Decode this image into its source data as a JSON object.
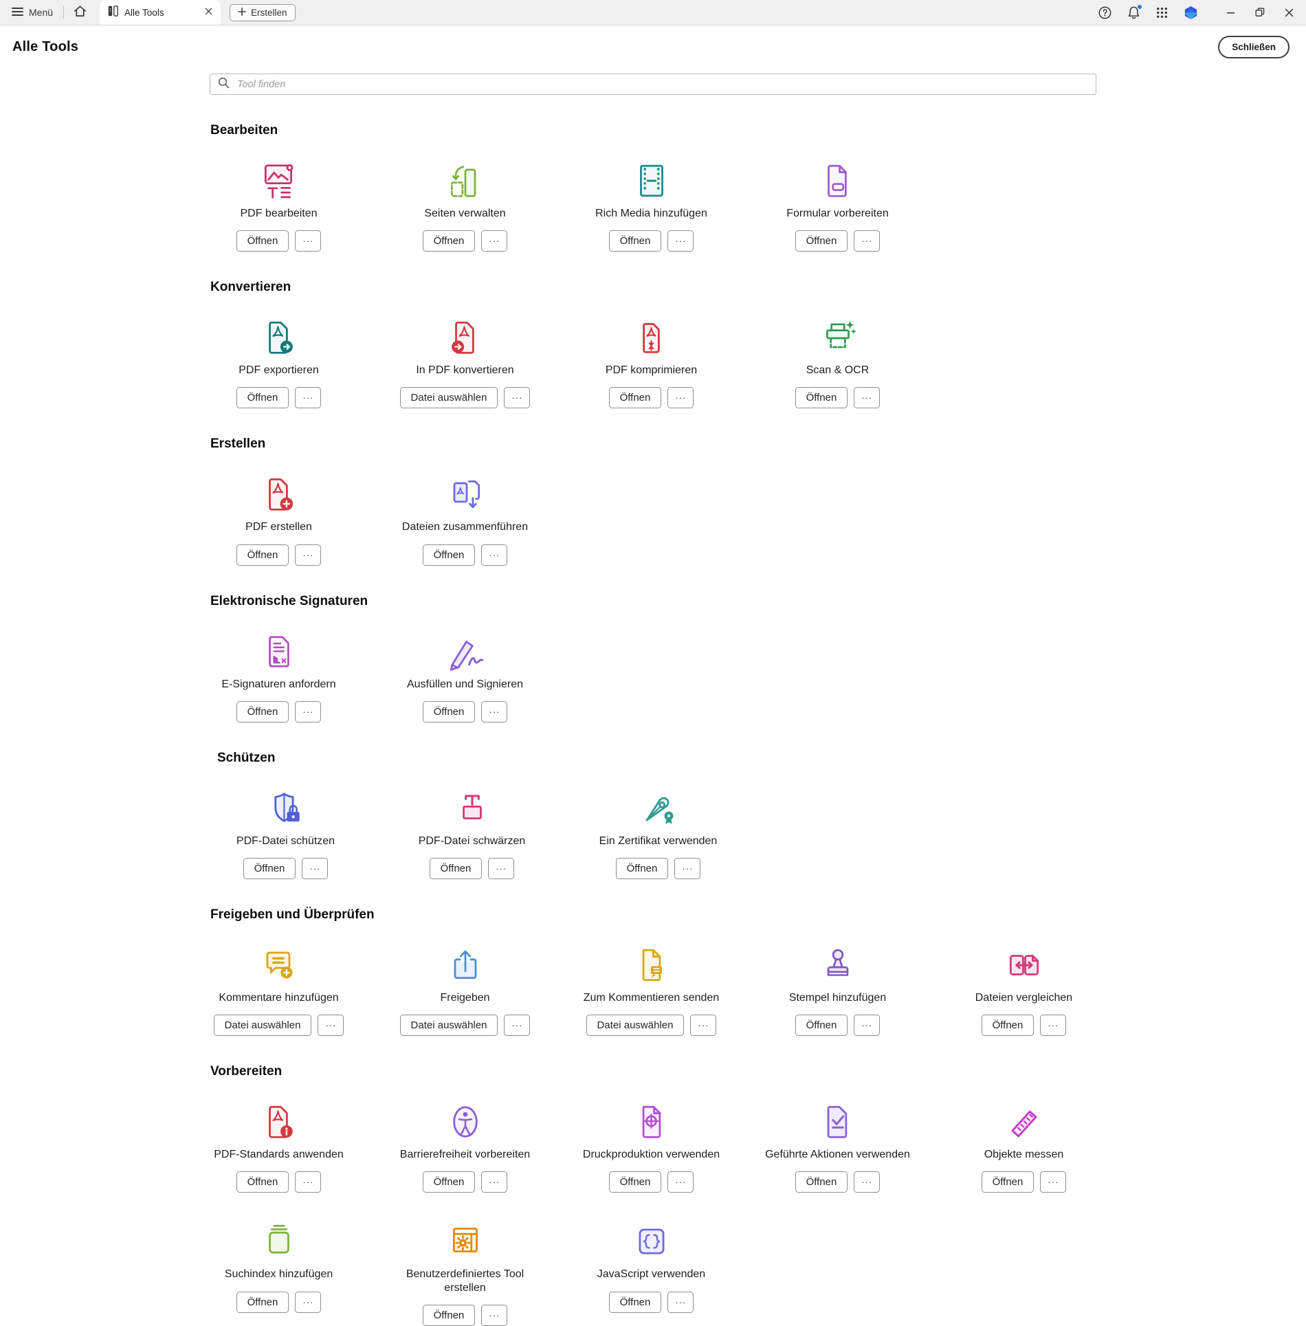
{
  "titlebar": {
    "menu_label": "Menü",
    "tab": {
      "label": "Alle Tools"
    },
    "create_button_label": "Erstellen"
  },
  "header": {
    "title": "Alle Tools",
    "close_button_label": "Schließen"
  },
  "search": {
    "placeholder": "Tool finden"
  },
  "buttons": {
    "open": "Öffnen",
    "choose_file": "Datei auswählen",
    "more": "···"
  },
  "colors": {
    "notification_badge": "#2680EB",
    "tab_background": "#ffffff",
    "titlebar_background": "#f0f0f1"
  },
  "sections": [
    {
      "name": "bearbeiten",
      "title": "Bearbeiten",
      "tools": [
        {
          "name": "pdf-bearbeiten",
          "label": "PDF bearbeiten",
          "icon": "pdf-edit-icon",
          "color": "#C7336E",
          "action": "open"
        },
        {
          "name": "seiten-verwalten",
          "label": "Seiten verwalten",
          "icon": "organize-pages-icon",
          "color": "#7CB342",
          "action": "open"
        },
        {
          "name": "rich-media-hinzufuegen",
          "label": "Rich Media hinzufügen",
          "icon": "rich-media-icon",
          "color": "#1D8B8D",
          "action": "open"
        },
        {
          "name": "formular-vorbereiten",
          "label": "Formular vorbereiten",
          "icon": "prepare-form-icon",
          "color": "#9C5FC8",
          "action": "open"
        }
      ]
    },
    {
      "name": "konvertieren",
      "title": "Konvertieren",
      "tools": [
        {
          "name": "pdf-exportieren",
          "label": "PDF exportieren",
          "icon": "export-pdf-icon",
          "color": "#16797B",
          "action": "open"
        },
        {
          "name": "in-pdf-konvertieren",
          "label": "In PDF konvertieren",
          "icon": "convert-to-pdf-icon",
          "color": "#D2393F",
          "action": "choose_file"
        },
        {
          "name": "pdf-komprimieren",
          "label": "PDF komprimieren",
          "icon": "compress-pdf-icon",
          "color": "#D2393F",
          "action": "open"
        },
        {
          "name": "scan-ocr",
          "label": "Scan & OCR",
          "icon": "scan-ocr-icon",
          "color": "#2E9E53",
          "action": "open"
        }
      ]
    },
    {
      "name": "erstellen",
      "title": "Erstellen",
      "tools": [
        {
          "name": "pdf-erstellen",
          "label": "PDF erstellen",
          "icon": "create-pdf-icon",
          "color": "#D2393F",
          "action": "open"
        },
        {
          "name": "dateien-zusammenfuehren",
          "label": "Dateien zusammenführen",
          "icon": "combine-files-icon",
          "color": "#6B6BDF",
          "action": "open"
        }
      ]
    },
    {
      "name": "elektronische-signaturen",
      "title": "Elektronische Signaturen",
      "tools": [
        {
          "name": "e-signaturen-anfordern",
          "label": "E-Signaturen anfordern",
          "icon": "request-signatures-icon",
          "color": "#B052C0",
          "action": "open"
        },
        {
          "name": "ausfuellen-und-signieren",
          "label": "Ausfüllen und Signieren",
          "icon": "fill-sign-icon",
          "color": "#8A5FD6",
          "action": "open"
        }
      ]
    },
    {
      "name": "schuetzen",
      "title": "Schützen",
      "offset": true,
      "tools": [
        {
          "name": "pdf-datei-schuetzen",
          "label": "PDF-Datei schützen",
          "icon": "protect-pdf-icon",
          "color": "#4E5FD4",
          "action": "open"
        },
        {
          "name": "pdf-datei-schwaerzen",
          "label": "PDF-Datei schwärzen",
          "icon": "redact-icon",
          "color": "#D23A78",
          "action": "open"
        },
        {
          "name": "ein-zertifikat-verwenden",
          "label": "Ein Zertifikat verwenden",
          "icon": "certificate-icon",
          "color": "#2D9C8F",
          "action": "open"
        }
      ]
    },
    {
      "name": "freigeben-und-ueberpruefen",
      "title": "Freigeben und Überprüfen",
      "tools": [
        {
          "name": "kommentare-hinzufuegen",
          "label": "Kommentare hinzufügen",
          "icon": "add-comments-icon",
          "color": "#D9A614",
          "action": "choose_file"
        },
        {
          "name": "freigeben",
          "label": "Freigeben",
          "icon": "share-icon",
          "color": "#4B8FD6",
          "action": "choose_file"
        },
        {
          "name": "zum-kommentieren-senden",
          "label": "Zum Kommentieren senden",
          "icon": "send-for-comments-icon",
          "color": "#D9A614",
          "action": "choose_file"
        },
        {
          "name": "stempel-hinzufuegen",
          "label": "Stempel hinzufügen",
          "icon": "add-stamp-icon",
          "color": "#7E57C2",
          "action": "open"
        },
        {
          "name": "dateien-vergleichen",
          "label": "Dateien vergleichen",
          "icon": "compare-files-icon",
          "color": "#D23A78",
          "action": "open"
        }
      ]
    },
    {
      "name": "vorbereiten",
      "title": "Vorbereiten",
      "tools": [
        {
          "name": "pdf-standards-anwenden",
          "label": "PDF-Standards anwenden",
          "icon": "pdf-standards-icon",
          "color": "#D2393F",
          "action": "open"
        },
        {
          "name": "barrierefreiheit-vorbereiten",
          "label": "Barrierefreiheit vorbereiten",
          "icon": "accessibility-icon",
          "color": "#8A5FD6",
          "action": "open"
        },
        {
          "name": "druckproduktion-verwenden",
          "label": "Druckproduktion verwenden",
          "icon": "print-production-icon",
          "color": "#B44FD0",
          "action": "open"
        },
        {
          "name": "gefuehrte-aktionen-verwenden",
          "label": "Geführte Aktionen verwenden",
          "icon": "guided-actions-icon",
          "color": "#8A5FD6",
          "action": "open"
        },
        {
          "name": "objekte-messen",
          "label": "Objekte messen",
          "icon": "measure-icon",
          "color": "#C336C9",
          "action": "open"
        },
        {
          "name": "suchindex-hinzufuegen",
          "label": "Suchindex hinzufügen",
          "icon": "search-index-icon",
          "color": "#7CB342",
          "action": "open"
        },
        {
          "name": "benutzerdefiniertes-tool-erstellen",
          "label": "Benutzerdefiniertes Tool erstellen",
          "icon": "custom-tool-icon",
          "color": "#E08700",
          "action": "open"
        },
        {
          "name": "javascript-verwenden",
          "label": "JavaScript verwenden",
          "icon": "javascript-icon",
          "color": "#6B6BDF",
          "action": "open"
        }
      ]
    }
  ]
}
